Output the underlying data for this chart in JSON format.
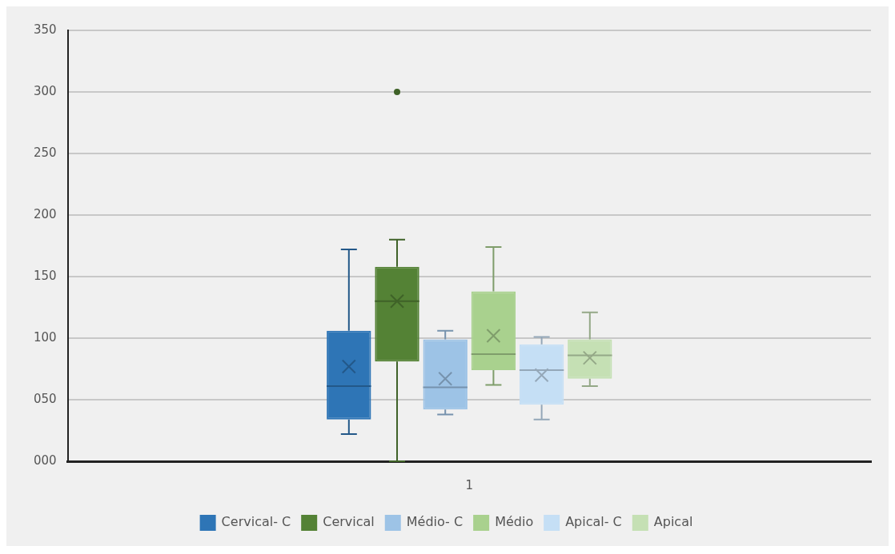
{
  "chart_data": {
    "type": "box",
    "categories": [
      "1"
    ],
    "ylim": [
      0,
      350
    ],
    "yticks": [
      {
        "value": 0,
        "label": "000"
      },
      {
        "value": 50,
        "label": "050"
      },
      {
        "value": 100,
        "label": "100"
      },
      {
        "value": 150,
        "label": "150"
      },
      {
        "value": 200,
        "label": "200"
      },
      {
        "value": 250,
        "label": "250"
      },
      {
        "value": 300,
        "label": "300"
      },
      {
        "value": 350,
        "label": "350"
      }
    ],
    "grid": "y",
    "legend": "bottom",
    "marker": "cross",
    "series": [
      {
        "name": "Cervical- C",
        "color": "#2e75b6",
        "boxes": [
          {
            "low": 22,
            "q1": 34,
            "median": 61,
            "q3": 106,
            "high": 172,
            "mean": 77
          }
        ]
      },
      {
        "name": "Cervical",
        "color": "#548235",
        "boxes": [
          {
            "low": 0,
            "q1": 81,
            "median": 130,
            "q3": 158,
            "high": 180,
            "mean": 130,
            "outliers": [
              300
            ]
          }
        ]
      },
      {
        "name": "Médio- C",
        "color": "#9dc3e6",
        "boxes": [
          {
            "low": 38,
            "q1": 42,
            "median": 60,
            "q3": 99,
            "high": 106,
            "mean": 67
          }
        ]
      },
      {
        "name": "Médio",
        "color": "#a9d18e",
        "boxes": [
          {
            "low": 62,
            "q1": 74,
            "median": 87,
            "q3": 138,
            "high": 174,
            "mean": 102
          }
        ]
      },
      {
        "name": "Apical- C",
        "color": "#c5dff5",
        "boxes": [
          {
            "low": 34,
            "q1": 46,
            "median": 74,
            "q3": 95,
            "high": 101,
            "mean": 70
          }
        ]
      },
      {
        "name": "Apical",
        "color": "#c5e0b4",
        "boxes": [
          {
            "low": 61,
            "q1": 67,
            "median": 86,
            "q3": 99,
            "high": 121,
            "mean": 84
          }
        ]
      }
    ]
  }
}
